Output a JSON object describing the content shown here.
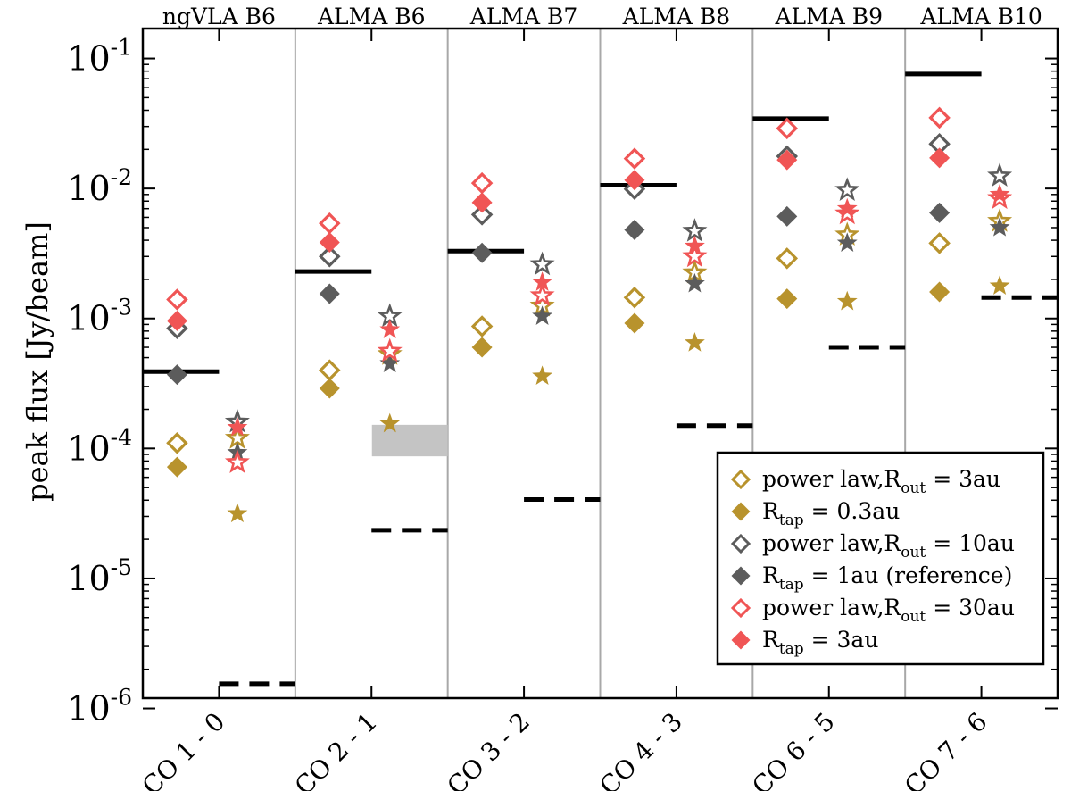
{
  "chart_data": {
    "type": "scatter",
    "ylabel": "peak flux [Jy/beam]",
    "yscale": "log",
    "ylim": [
      1.2e-06,
      0.17
    ],
    "yticks": [
      {
        "value": 0.1,
        "base": "10",
        "exp": "-1"
      },
      {
        "value": 0.01,
        "base": "10",
        "exp": "-2"
      },
      {
        "value": 0.001,
        "base": "10",
        "exp": "-3"
      },
      {
        "value": 0.0001,
        "base": "10",
        "exp": "-4"
      },
      {
        "value": 1e-05,
        "base": "10",
        "exp": "-5"
      },
      {
        "value": 1e-06,
        "base": "10",
        "exp": "-6"
      }
    ],
    "categories": [
      "CO 1 - 0",
      "CO 2 - 1",
      "CO 3 - 2",
      "CO 4 - 3",
      "CO 6 - 5",
      "CO 7 - 6"
    ],
    "bands": [
      "ngVLA B6",
      "ALMA B6",
      "ALMA B7",
      "ALMA B8",
      "ALMA B9",
      "ALMA B10"
    ],
    "series": [
      {
        "name": "power law, R_out = 3au",
        "marker": "diamond-open",
        "color": "#b8932d",
        "diamond": [
          0.00011,
          0.0004,
          0.00087,
          0.00145,
          0.0029,
          0.0038
        ],
        "star": [
          0.00012,
          0.00053,
          0.00125,
          0.00225,
          0.0044,
          0.0056
        ]
      },
      {
        "name": "R_tap = 0.3au",
        "marker": "diamond-filled",
        "color": "#b8932d",
        "diamond": [
          7.2e-05,
          0.00029,
          0.0006,
          0.00092,
          0.00142,
          0.0016
        ],
        "star": [
          3.15e-05,
          0.000155,
          0.00036,
          0.00065,
          0.00135,
          0.00178
        ]
      },
      {
        "name": "power law, R_out = 10au",
        "marker": "diamond-open",
        "color": "#5c5c5c",
        "diamond": [
          0.00084,
          0.003,
          0.0063,
          0.0099,
          0.0177,
          0.022
        ],
        "star": [
          0.00016,
          0.00104,
          0.0026,
          0.0047,
          0.0097,
          0.0125
        ]
      },
      {
        "name": "R_tap = 1au (reference)",
        "marker": "diamond-filled",
        "color": "#5c5c5c",
        "diamond": [
          0.00037,
          0.00155,
          0.0032,
          0.0048,
          0.0061,
          0.0065
        ],
        "star": [
          9.3e-05,
          0.00045,
          0.00104,
          0.00185,
          0.0038,
          0.005
        ]
      },
      {
        "name": "power law, R_out = 30au",
        "marker": "diamond-open",
        "color": "#f05555",
        "diamond": [
          0.0014,
          0.0054,
          0.011,
          0.017,
          0.029,
          0.035
        ],
        "star": [
          7.8e-05,
          0.00056,
          0.0015,
          0.003,
          0.0064,
          0.0084
        ]
      },
      {
        "name": "R_tap = 3au",
        "marker": "diamond-filled",
        "color": "#f05555",
        "diamond": [
          0.00096,
          0.00385,
          0.0078,
          0.0116,
          0.0166,
          0.0172
        ],
        "star": [
          0.000145,
          0.00082,
          0.0019,
          0.0036,
          0.007,
          0.009
        ]
      }
    ],
    "sensitivity_solid": [
      0.00039,
      0.0023,
      0.0033,
      0.0106,
      0.0345,
      0.076
    ],
    "sensitivity_dashed": [
      1.55e-06,
      2.35e-05,
      4.05e-05,
      0.00015,
      0.0006,
      0.00145
    ],
    "gray_band": {
      "category": "CO 2 - 1",
      "low": 8.7e-05,
      "high": 0.000152
    }
  },
  "legend": {
    "entries": [
      {
        "pre": "power law,R",
        "sub": "out",
        "post": " = 3au",
        "marker": "diamond-open",
        "color": "#b8932d"
      },
      {
        "pre": "R",
        "sub": "tap",
        "post": " = 0.3au",
        "marker": "diamond-filled",
        "color": "#b8932d"
      },
      {
        "pre": "power law,R",
        "sub": "out",
        "post": " = 10au",
        "marker": "diamond-open",
        "color": "#5c5c5c"
      },
      {
        "pre": "R",
        "sub": "tap",
        "post": " = 1au (reference)",
        "marker": "diamond-filled",
        "color": "#5c5c5c"
      },
      {
        "pre": "power law,R",
        "sub": "out",
        "post": " = 30au",
        "marker": "diamond-open",
        "color": "#f05555"
      },
      {
        "pre": "R",
        "sub": "tap",
        "post": " = 3au",
        "marker": "diamond-filled",
        "color": "#f05555"
      }
    ]
  },
  "colors": {
    "gold": "#b8932d",
    "gray": "#5c5c5c",
    "red": "#f05555",
    "band_fill": "#c4c4c4",
    "divider": "#a8a8a8"
  }
}
